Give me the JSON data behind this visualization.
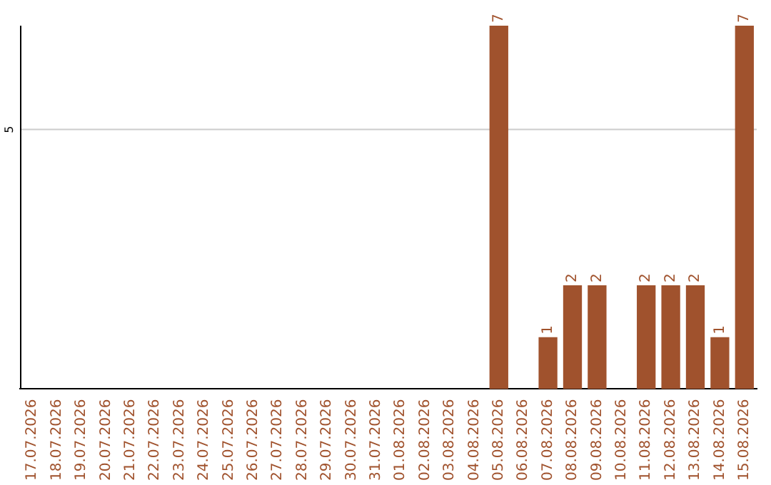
{
  "chart_data": {
    "type": "bar",
    "categories": [
      "17.07.2026",
      "18.07.2026",
      "19.07.2026",
      "20.07.2026",
      "21.07.2026",
      "22.07.2026",
      "23.07.2026",
      "24.07.2026",
      "25.07.2026",
      "26.07.2026",
      "27.07.2026",
      "28.07.2026",
      "29.07.2026",
      "30.07.2026",
      "31.07.2026",
      "01.08.2026",
      "02.08.2026",
      "03.08.2026",
      "04.08.2026",
      "05.08.2026",
      "06.08.2026",
      "07.08.2026",
      "08.08.2026",
      "09.08.2026",
      "10.08.2026",
      "11.08.2026",
      "12.08.2026",
      "13.08.2026",
      "14.08.2026",
      "15.08.2026"
    ],
    "values": [
      null,
      null,
      null,
      null,
      null,
      null,
      null,
      null,
      null,
      null,
      null,
      null,
      null,
      null,
      null,
      null,
      null,
      null,
      null,
      7,
      null,
      1,
      2,
      2,
      null,
      2,
      2,
      2,
      1,
      7
    ],
    "value_labels": [
      null,
      null,
      null,
      null,
      null,
      null,
      null,
      null,
      null,
      null,
      null,
      null,
      null,
      null,
      null,
      null,
      null,
      null,
      null,
      "7",
      null,
      "1",
      "2",
      "2",
      null,
      "2",
      "2",
      "2",
      "1",
      "7"
    ],
    "ylim": [
      0,
      7
    ],
    "ref_lines": [
      {
        "axis": "y",
        "value": 5,
        "label": "5",
        "color": "#cccccc"
      }
    ],
    "color": "#a0522d",
    "legend": false
  }
}
